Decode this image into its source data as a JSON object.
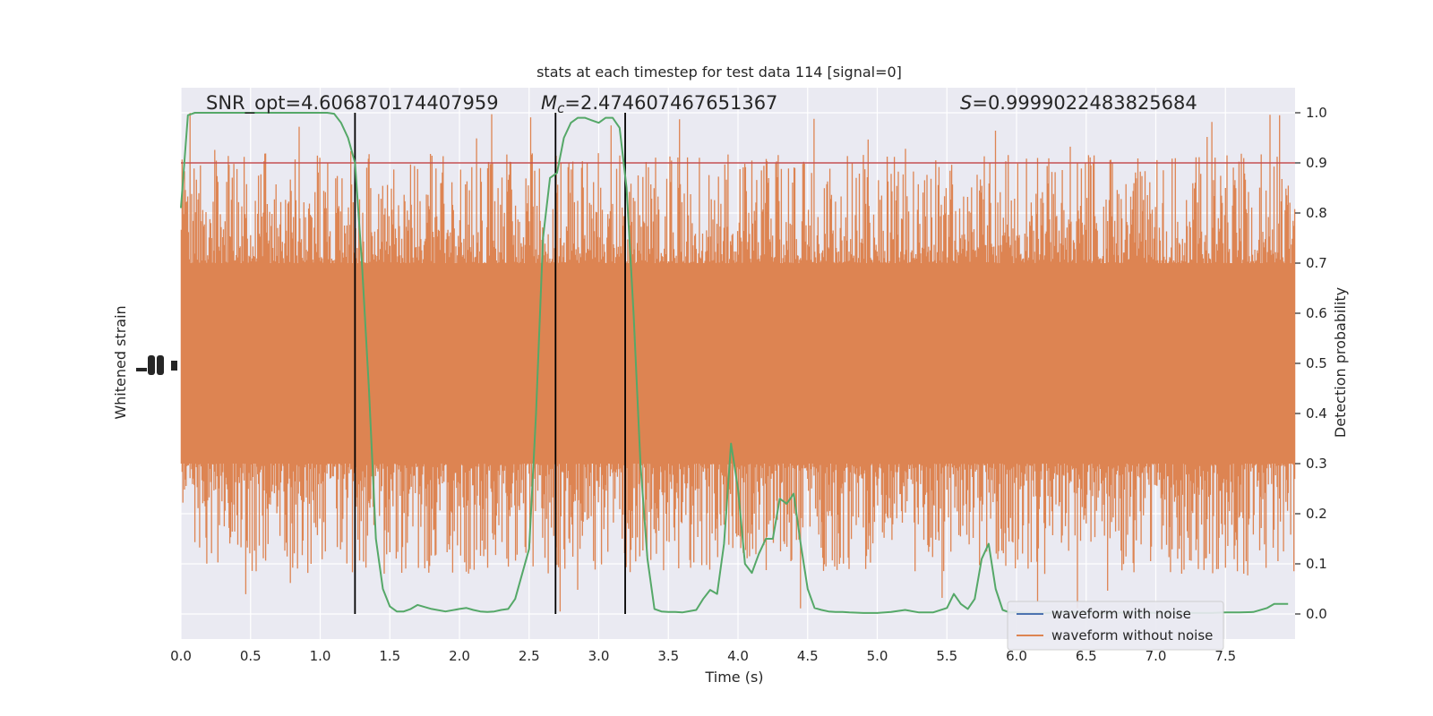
{
  "chart_data": {
    "type": "line",
    "title": "stats at each timestep for test data 114 [signal=0]",
    "xlabel": "Time (s)",
    "ylabel_left": "Whitened strain",
    "ylabel_right": "Detection probability",
    "xlim": [
      0,
      8
    ],
    "ylim_right": [
      -0.05,
      1.05
    ],
    "x_ticks": [
      "0.0",
      "0.5",
      "1.0",
      "1.5",
      "2.0",
      "2.5",
      "3.0",
      "3.5",
      "4.0",
      "4.5",
      "5.0",
      "5.5",
      "6.0",
      "6.5",
      "7.0",
      "7.5"
    ],
    "y_ticks_right": [
      "0.0",
      "0.1",
      "0.2",
      "0.3",
      "0.4",
      "0.5",
      "0.6",
      "0.7",
      "0.8",
      "0.9",
      "1.0"
    ],
    "annotations": {
      "snr": "SNR_opt=4.606870174407959",
      "mc_symbol": "M",
      "mc_sub": "c",
      "mc_value": "=2.474607467651367",
      "s_symbol": "S",
      "s_value": "=0.9999022483825684"
    },
    "threshold": 0.9,
    "threshold_color": "#c44e52",
    "vlines": [
      1.25,
      2.69,
      3.19
    ],
    "legend": {
      "placement": "lower-right",
      "entries": [
        {
          "label": "waveform with noise",
          "color": "#4c72b0"
        },
        {
          "label": "waveform without noise",
          "color": "#dd8452"
        }
      ]
    },
    "series": [
      {
        "label": "waveform without noise",
        "color": "#dd8452",
        "kind": "dense-noise",
        "core_band": [
          0.3,
          0.7
        ],
        "spike_range": [
          0.0,
          1.0
        ]
      },
      {
        "label": "detection probability",
        "color": "#55a868",
        "x": [
          0.0,
          0.05,
          0.1,
          0.15,
          0.2,
          0.3,
          0.4,
          0.5,
          0.6,
          0.7,
          0.8,
          0.9,
          1.0,
          1.05,
          1.1,
          1.15,
          1.2,
          1.25,
          1.3,
          1.35,
          1.4,
          1.45,
          1.5,
          1.55,
          1.6,
          1.65,
          1.7,
          1.8,
          1.9,
          2.0,
          2.05,
          2.1,
          2.15,
          2.2,
          2.25,
          2.3,
          2.35,
          2.4,
          2.45,
          2.5,
          2.55,
          2.6,
          2.65,
          2.7,
          2.75,
          2.8,
          2.85,
          2.9,
          2.95,
          3.0,
          3.05,
          3.1,
          3.15,
          3.2,
          3.25,
          3.3,
          3.35,
          3.4,
          3.45,
          3.5,
          3.55,
          3.6,
          3.7,
          3.75,
          3.8,
          3.85,
          3.9,
          3.95,
          4.0,
          4.05,
          4.1,
          4.15,
          4.2,
          4.25,
          4.3,
          4.35,
          4.4,
          4.45,
          4.5,
          4.55,
          4.6,
          4.65,
          4.7,
          4.75,
          4.8,
          4.9,
          5.0,
          5.1,
          5.2,
          5.3,
          5.4,
          5.5,
          5.55,
          5.6,
          5.65,
          5.7,
          5.75,
          5.8,
          5.85,
          5.9,
          5.95,
          6.0,
          6.1,
          6.2,
          6.3,
          6.4,
          6.5,
          6.6,
          6.7,
          6.8,
          6.9,
          7.0,
          7.1,
          7.2,
          7.3,
          7.4,
          7.5,
          7.6,
          7.7,
          7.8,
          7.85,
          7.9,
          7.95
        ],
        "y": [
          0.81,
          0.995,
          1.0,
          1.0,
          1.0,
          1.0,
          1.0,
          1.0,
          1.0,
          1.0,
          1.0,
          1.0,
          1.0,
          1.0,
          0.998,
          0.98,
          0.95,
          0.9,
          0.7,
          0.45,
          0.15,
          0.05,
          0.015,
          0.005,
          0.005,
          0.01,
          0.018,
          0.01,
          0.005,
          0.01,
          0.012,
          0.008,
          0.005,
          0.004,
          0.005,
          0.008,
          0.01,
          0.03,
          0.08,
          0.13,
          0.4,
          0.75,
          0.87,
          0.88,
          0.95,
          0.98,
          0.99,
          0.99,
          0.985,
          0.98,
          0.99,
          0.99,
          0.97,
          0.85,
          0.6,
          0.3,
          0.11,
          0.01,
          0.005,
          0.004,
          0.004,
          0.003,
          0.008,
          0.03,
          0.048,
          0.04,
          0.14,
          0.34,
          0.25,
          0.1,
          0.082,
          0.12,
          0.15,
          0.15,
          0.23,
          0.22,
          0.24,
          0.14,
          0.05,
          0.012,
          0.008,
          0.005,
          0.004,
          0.004,
          0.003,
          0.002,
          0.002,
          0.004,
          0.008,
          0.003,
          0.003,
          0.012,
          0.04,
          0.02,
          0.01,
          0.03,
          0.11,
          0.14,
          0.05,
          0.008,
          0.003,
          0.003,
          0.002,
          0.002,
          0.003,
          0.004,
          0.003,
          0.002,
          0.002,
          0.003,
          0.003,
          0.002,
          0.002,
          0.002,
          0.002,
          0.002,
          0.003,
          0.003,
          0.004,
          0.012,
          0.02,
          0.02,
          0.02
        ]
      }
    ],
    "colors": {
      "plot_bg": "#eaeaf2",
      "grid": "#ffffff",
      "vline": "#000000"
    }
  }
}
